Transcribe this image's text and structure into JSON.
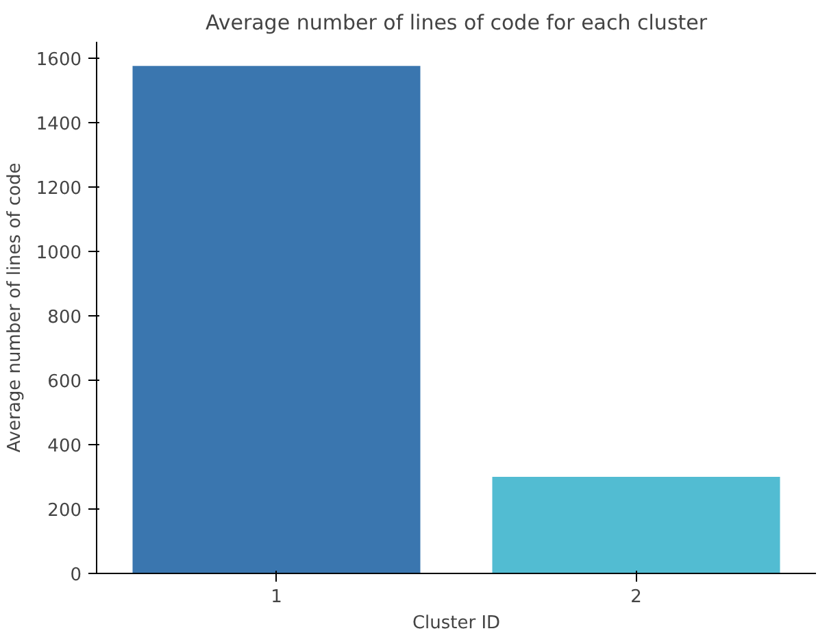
{
  "chart_data": {
    "type": "bar",
    "title": "Average number of lines of code for each cluster",
    "xlabel": "Cluster ID",
    "ylabel": "Average number of lines of code",
    "categories": [
      "1",
      "2"
    ],
    "values": [
      1575,
      300
    ],
    "colors": [
      "#3a76af",
      "#52bcd2"
    ],
    "ylim": [
      0,
      1650
    ],
    "yticks": [
      0,
      200,
      400,
      600,
      800,
      1000,
      1200,
      1400,
      1600
    ],
    "grid": false
  }
}
